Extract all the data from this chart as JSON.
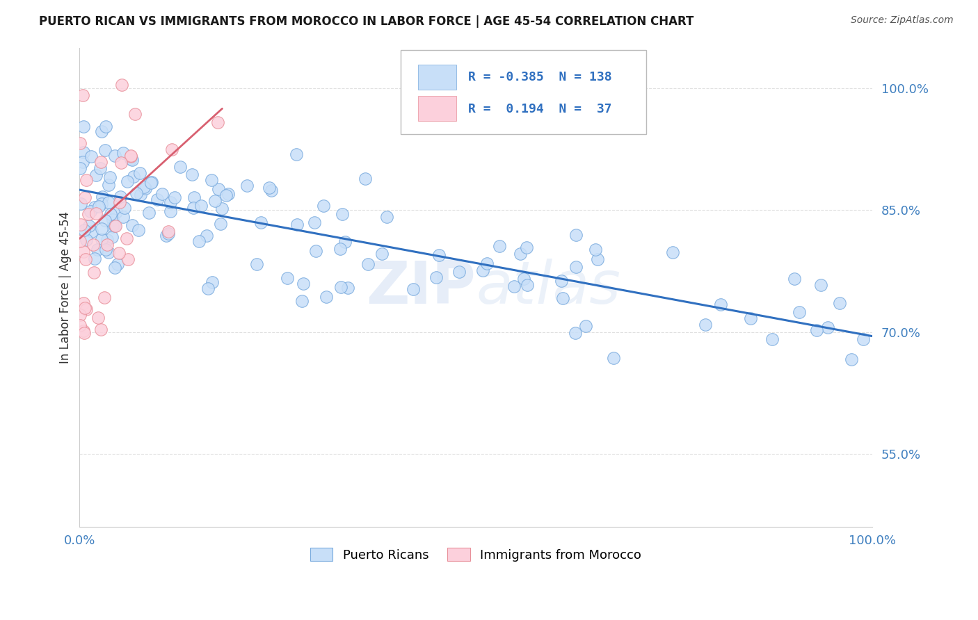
{
  "title": "PUERTO RICAN VS IMMIGRANTS FROM MOROCCO IN LABOR FORCE | AGE 45-54 CORRELATION CHART",
  "source": "Source: ZipAtlas.com",
  "ylabel": "In Labor Force | Age 45-54",
  "xlim": [
    0.0,
    1.0
  ],
  "ylim": [
    0.46,
    1.05
  ],
  "yticks": [
    0.55,
    0.7,
    0.85,
    1.0
  ],
  "ytick_labels": [
    "55.0%",
    "70.0%",
    "85.0%",
    "100.0%"
  ],
  "xticks": [
    0.0,
    0.1,
    0.2,
    0.3,
    0.4,
    0.5,
    0.6,
    0.7,
    0.8,
    0.9,
    1.0
  ],
  "xtick_labels": [
    "0.0%",
    "",
    "",
    "",
    "",
    "",
    "",
    "",
    "",
    "",
    "100.0%"
  ],
  "blue_face": "#c8dff8",
  "blue_edge": "#7aabde",
  "blue_line_color": "#3070c0",
  "pink_face": "#fcd0dc",
  "pink_edge": "#e8909a",
  "pink_line_color": "#d86070",
  "blue_R": -0.385,
  "blue_N": 138,
  "pink_R": 0.194,
  "pink_N": 37,
  "watermark_zip": "ZIP",
  "watermark_atlas": "atlas",
  "legend_label_blue": "Puerto Ricans",
  "legend_label_pink": "Immigrants from Morocco",
  "title_color": "#1a1a1a",
  "axis_label_color": "#333333",
  "tick_label_color": "#4080c0",
  "source_color": "#555555",
  "grid_color": "#e0e0e0",
  "blue_line_y0": 0.875,
  "blue_line_y1": 0.695,
  "pink_line_x0": 0.0,
  "pink_line_x1": 0.18,
  "pink_line_y0": 0.815,
  "pink_line_y1": 0.975
}
